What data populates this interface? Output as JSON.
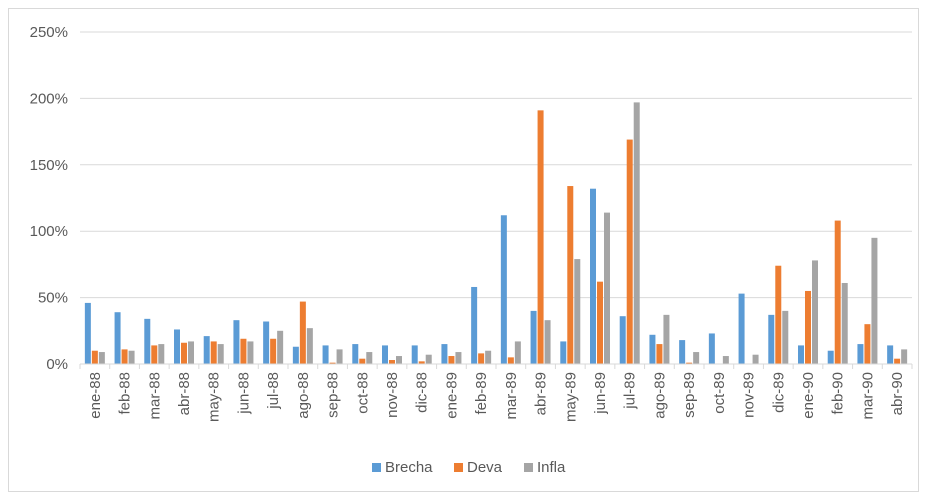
{
  "chart_data": {
    "type": "bar",
    "title": "",
    "xlabel": "",
    "ylabel": "",
    "ylim": [
      0,
      2.5
    ],
    "y_ticks": [
      0,
      0.5,
      1.0,
      1.5,
      2.0,
      2.5
    ],
    "y_tick_labels": [
      "0%",
      "50%",
      "100%",
      "150%",
      "200%",
      "250%"
    ],
    "grid": true,
    "legend_position": "bottom",
    "categories": [
      "ene-88",
      "feb-88",
      "mar-88",
      "abr-88",
      "may-88",
      "jun-88",
      "jul-88",
      "ago-88",
      "sep-88",
      "oct-88",
      "nov-88",
      "dic-88",
      "ene-89",
      "feb-89",
      "mar-89",
      "abr-89",
      "may-89",
      "jun-89",
      "jul-89",
      "ago-89",
      "sep-89",
      "oct-89",
      "nov-89",
      "dic-89",
      "ene-90",
      "feb-90",
      "mar-90",
      "abr-90"
    ],
    "series": [
      {
        "name": "Brecha",
        "color": "#5b9bd5",
        "values": [
          0.46,
          0.39,
          0.34,
          0.26,
          0.21,
          0.33,
          0.32,
          0.13,
          0.14,
          0.15,
          0.14,
          0.14,
          0.15,
          0.58,
          1.12,
          0.4,
          0.17,
          1.32,
          0.36,
          0.22,
          0.18,
          0.23,
          0.53,
          0.37,
          0.14,
          0.1,
          0.15,
          0.14
        ]
      },
      {
        "name": "Deva",
        "color": "#ed7d31",
        "values": [
          0.1,
          0.11,
          0.14,
          0.16,
          0.17,
          0.19,
          0.19,
          0.47,
          0.01,
          0.04,
          0.03,
          0.02,
          0.06,
          0.08,
          0.05,
          1.91,
          1.34,
          0.62,
          1.69,
          0.15,
          0.01,
          0.0,
          0.0,
          0.74,
          0.55,
          1.08,
          0.3,
          0.04
        ]
      },
      {
        "name": "Infla",
        "color": "#a5a5a5",
        "values": [
          0.09,
          0.1,
          0.15,
          0.17,
          0.15,
          0.17,
          0.25,
          0.27,
          0.11,
          0.09,
          0.06,
          0.07,
          0.09,
          0.1,
          0.17,
          0.33,
          0.79,
          1.14,
          1.97,
          0.37,
          0.09,
          0.06,
          0.07,
          0.4,
          0.78,
          0.61,
          0.95,
          0.11
        ]
      }
    ]
  }
}
